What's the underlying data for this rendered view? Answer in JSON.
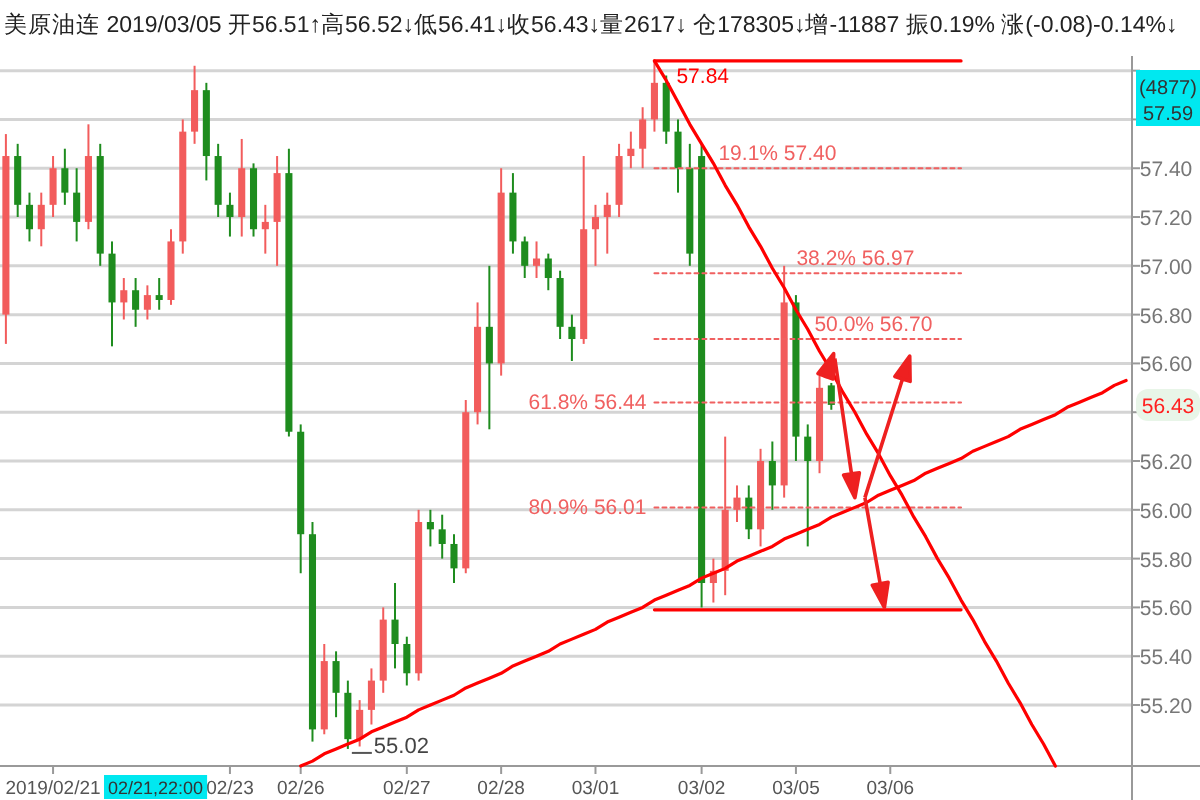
{
  "chart_data": {
    "type": "candlestick",
    "title": "美原油连 2019/03/05 开56.51↑高56.52↓低56.41↓收56.43↓量2617↓ 仓178305↓增-11887 振0.19% 涨(-0.08)-0.14%↓",
    "categories": [
      null,
      null,
      null,
      null,
      "2019/02/21",
      null,
      null,
      null,
      null,
      null,
      null,
      null,
      null,
      null,
      null,
      null,
      null,
      null,
      null,
      "02/23",
      null,
      null,
      null,
      null,
      null,
      "02/26",
      null,
      null,
      null,
      null,
      null,
      null,
      null,
      null,
      "02/27",
      null,
      null,
      null,
      null,
      null,
      null,
      null,
      "02/28",
      null,
      null,
      null,
      null,
      null,
      null,
      null,
      "03/01",
      null,
      null,
      null,
      null,
      null,
      null,
      null,
      null,
      "03/02",
      null,
      null,
      null,
      null,
      null,
      null,
      null,
      "03/05",
      null,
      null,
      null,
      null,
      null,
      null,
      null,
      "03/06",
      null,
      null,
      null,
      null,
      null,
      null,
      null,
      null,
      null,
      null,
      null,
      null,
      null,
      null,
      null,
      null,
      null,
      null,
      null,
      null
    ],
    "ohlc": [
      [
        56.8,
        57.54,
        56.68,
        57.45
      ],
      [
        57.45,
        57.5,
        57.2,
        57.25
      ],
      [
        57.25,
        57.3,
        57.1,
        57.15
      ],
      [
        57.15,
        57.3,
        57.08,
        57.25
      ],
      [
        57.25,
        57.45,
        57.2,
        57.4
      ],
      [
        57.4,
        57.48,
        57.25,
        57.3
      ],
      [
        57.3,
        57.4,
        57.1,
        57.18
      ],
      [
        57.18,
        57.58,
        57.15,
        57.45
      ],
      [
        57.45,
        57.5,
        57.0,
        57.05
      ],
      [
        57.05,
        57.1,
        56.67,
        56.85
      ],
      [
        56.85,
        56.95,
        56.78,
        56.9
      ],
      [
        56.9,
        56.95,
        56.75,
        56.82
      ],
      [
        56.82,
        56.92,
        56.78,
        56.88
      ],
      [
        56.88,
        56.95,
        56.82,
        56.86
      ],
      [
        56.86,
        57.15,
        56.84,
        57.1
      ],
      [
        57.1,
        57.6,
        57.05,
        57.55
      ],
      [
        57.55,
        57.82,
        57.5,
        57.72
      ],
      [
        57.72,
        57.75,
        57.35,
        57.45
      ],
      [
        57.45,
        57.5,
        57.2,
        57.25
      ],
      [
        57.25,
        57.3,
        57.12,
        57.2
      ],
      [
        57.2,
        57.52,
        57.12,
        57.4
      ],
      [
        57.4,
        57.42,
        57.12,
        57.15
      ],
      [
        57.15,
        57.25,
        57.05,
        57.18
      ],
      [
        57.18,
        57.45,
        57.0,
        57.38
      ],
      [
        57.38,
        57.48,
        56.3,
        56.32
      ],
      [
        56.32,
        56.35,
        55.74,
        55.9
      ],
      [
        55.9,
        55.95,
        55.05,
        55.1
      ],
      [
        55.1,
        55.45,
        55.08,
        55.38
      ],
      [
        55.38,
        55.42,
        55.15,
        55.25
      ],
      [
        55.25,
        55.3,
        55.02,
        55.06
      ],
      [
        55.06,
        55.22,
        55.03,
        55.18
      ],
      [
        55.18,
        55.35,
        55.12,
        55.3
      ],
      [
        55.3,
        55.6,
        55.25,
        55.55
      ],
      [
        55.55,
        55.7,
        55.35,
        55.45
      ],
      [
        55.45,
        55.48,
        55.28,
        55.33
      ],
      [
        55.33,
        56.0,
        55.3,
        55.95
      ],
      [
        55.95,
        56.0,
        55.85,
        55.92
      ],
      [
        55.92,
        55.98,
        55.8,
        55.86
      ],
      [
        55.86,
        55.9,
        55.7,
        55.76
      ],
      [
        55.76,
        56.45,
        55.74,
        56.4
      ],
      [
        56.4,
        56.85,
        56.35,
        56.75
      ],
      [
        56.75,
        57.0,
        56.33,
        56.6
      ],
      [
        56.6,
        57.4,
        56.55,
        57.3
      ],
      [
        57.3,
        57.38,
        57.05,
        57.1
      ],
      [
        57.1,
        57.12,
        56.95,
        57.0
      ],
      [
        57.0,
        57.1,
        56.95,
        57.03
      ],
      [
        57.03,
        57.05,
        56.9,
        56.95
      ],
      [
        56.95,
        56.98,
        56.7,
        56.75
      ],
      [
        56.75,
        56.8,
        56.61,
        56.7
      ],
      [
        56.7,
        57.45,
        56.68,
        57.15
      ],
      [
        57.15,
        57.25,
        57.0,
        57.2
      ],
      [
        57.2,
        57.3,
        57.05,
        57.25
      ],
      [
        57.25,
        57.5,
        57.2,
        57.45
      ],
      [
        57.45,
        57.55,
        57.4,
        57.48
      ],
      [
        57.48,
        57.65,
        57.4,
        57.6
      ],
      [
        57.6,
        57.84,
        57.55,
        57.75
      ],
      [
        57.75,
        57.78,
        57.5,
        57.55
      ],
      [
        57.55,
        57.6,
        57.3,
        57.4
      ],
      [
        57.4,
        57.5,
        57.0,
        57.05
      ],
      [
        57.45,
        57.5,
        55.6,
        55.7
      ],
      [
        55.7,
        55.8,
        55.62,
        55.75
      ],
      [
        55.75,
        56.3,
        55.65,
        56.0
      ],
      [
        56.0,
        56.1,
        55.95,
        56.05
      ],
      [
        56.05,
        56.1,
        55.88,
        55.92
      ],
      [
        55.92,
        56.25,
        55.85,
        56.2
      ],
      [
        56.2,
        56.28,
        56.0,
        56.1
      ],
      [
        56.1,
        57.0,
        56.05,
        56.85
      ],
      [
        56.85,
        56.88,
        56.2,
        56.3
      ],
      [
        56.3,
        56.35,
        55.85,
        56.2
      ],
      [
        56.2,
        56.55,
        56.15,
        56.5
      ],
      [
        56.51,
        56.52,
        56.41,
        56.43
      ],
      null,
      null,
      null,
      null,
      null,
      null,
      null,
      null,
      null,
      null,
      null,
      null,
      null,
      null,
      null,
      null,
      null,
      null,
      null,
      null,
      null,
      null,
      null,
      null,
      null
    ],
    "ylim": [
      54.95,
      57.86
    ],
    "yticks": [
      {
        "value": 55.2,
        "label": "55.20"
      },
      {
        "value": 55.4,
        "label": "55.40"
      },
      {
        "value": 55.6,
        "label": "55.60"
      },
      {
        "value": 55.8,
        "label": "55.80"
      },
      {
        "value": 56.0,
        "label": "56.00"
      },
      {
        "value": 56.2,
        "label": "56.20"
      },
      {
        "value": 56.4,
        "label": null
      },
      {
        "value": 56.6,
        "label": "56.60"
      },
      {
        "value": 56.8,
        "label": "56.80"
      },
      {
        "value": 57.0,
        "label": "57.00"
      },
      {
        "value": 57.2,
        "label": "57.20"
      },
      {
        "value": 57.4,
        "label": "57.40"
      },
      {
        "value": 57.6,
        "label": null
      },
      {
        "value": 57.8,
        "label": null
      }
    ],
    "grid": "y",
    "series": [
      {
        "type": "line",
        "name": "57.84",
        "color": "#ff0000",
        "line_style": "solid",
        "values": [
          null,
          null,
          null,
          null,
          null,
          null,
          null,
          null,
          null,
          null,
          null,
          null,
          null,
          null,
          null,
          null,
          null,
          null,
          null,
          null,
          null,
          null,
          null,
          null,
          null,
          null,
          null,
          null,
          null,
          null,
          null,
          null,
          null,
          null,
          null,
          null,
          null,
          null,
          null,
          null,
          null,
          null,
          null,
          null,
          null,
          null,
          null,
          null,
          null,
          null,
          null,
          null,
          null,
          null,
          null,
          57.84,
          57.84,
          57.84,
          57.84,
          57.84,
          57.84,
          57.84,
          57.84,
          57.84,
          57.84,
          57.84,
          57.84,
          57.84,
          57.84,
          57.84,
          57.84,
          57.84,
          57.84,
          57.84,
          57.84,
          57.84,
          57.84,
          57.84,
          57.84,
          57.84,
          57.84,
          57.84,
          null,
          null,
          null,
          null,
          null,
          null,
          null,
          null,
          null,
          null,
          null,
          null,
          null,
          null
        ]
      },
      {
        "type": "line",
        "name": "19.1% 57.40",
        "color": "#f06060",
        "line_style": "dotted",
        "values": [
          null,
          null,
          null,
          null,
          null,
          null,
          null,
          null,
          null,
          null,
          null,
          null,
          null,
          null,
          null,
          null,
          null,
          null,
          null,
          null,
          null,
          null,
          null,
          null,
          null,
          null,
          null,
          null,
          null,
          null,
          null,
          null,
          null,
          null,
          null,
          null,
          null,
          null,
          null,
          null,
          null,
          null,
          null,
          null,
          null,
          null,
          null,
          null,
          null,
          null,
          null,
          null,
          null,
          null,
          null,
          57.4,
          57.4,
          57.4,
          57.4,
          57.4,
          57.4,
          57.4,
          57.4,
          57.4,
          57.4,
          57.4,
          57.4,
          57.4,
          57.4,
          57.4,
          57.4,
          57.4,
          57.4,
          57.4,
          57.4,
          57.4,
          57.4,
          57.4,
          57.4,
          57.4,
          57.4,
          57.4,
          null,
          null,
          null,
          null,
          null,
          null,
          null,
          null,
          null,
          null,
          null,
          null,
          null,
          null
        ]
      },
      {
        "type": "line",
        "name": "38.2% 56.97",
        "color": "#f06060",
        "line_style": "dotted",
        "values": [
          null,
          null,
          null,
          null,
          null,
          null,
          null,
          null,
          null,
          null,
          null,
          null,
          null,
          null,
          null,
          null,
          null,
          null,
          null,
          null,
          null,
          null,
          null,
          null,
          null,
          null,
          null,
          null,
          null,
          null,
          null,
          null,
          null,
          null,
          null,
          null,
          null,
          null,
          null,
          null,
          null,
          null,
          null,
          null,
          null,
          null,
          null,
          null,
          null,
          null,
          null,
          null,
          null,
          null,
          null,
          56.97,
          56.97,
          56.97,
          56.97,
          56.97,
          56.97,
          56.97,
          56.97,
          56.97,
          56.97,
          56.97,
          56.97,
          56.97,
          56.97,
          56.97,
          56.97,
          56.97,
          56.97,
          56.97,
          56.97,
          56.97,
          56.97,
          56.97,
          56.97,
          56.97,
          56.97,
          56.97,
          null,
          null,
          null,
          null,
          null,
          null,
          null,
          null,
          null,
          null,
          null,
          null,
          null,
          null
        ]
      },
      {
        "type": "line",
        "name": "50.0% 56.70",
        "color": "#f06060",
        "line_style": "dotted",
        "values": [
          null,
          null,
          null,
          null,
          null,
          null,
          null,
          null,
          null,
          null,
          null,
          null,
          null,
          null,
          null,
          null,
          null,
          null,
          null,
          null,
          null,
          null,
          null,
          null,
          null,
          null,
          null,
          null,
          null,
          null,
          null,
          null,
          null,
          null,
          null,
          null,
          null,
          null,
          null,
          null,
          null,
          null,
          null,
          null,
          null,
          null,
          null,
          null,
          null,
          null,
          null,
          null,
          null,
          null,
          null,
          56.7,
          56.7,
          56.7,
          56.7,
          56.7,
          56.7,
          56.7,
          56.7,
          56.7,
          56.7,
          56.7,
          56.7,
          56.7,
          56.7,
          56.7,
          56.7,
          56.7,
          56.7,
          56.7,
          56.7,
          56.7,
          56.7,
          56.7,
          56.7,
          56.7,
          56.7,
          56.7,
          null,
          null,
          null,
          null,
          null,
          null,
          null,
          null,
          null,
          null,
          null,
          null,
          null,
          null
        ]
      },
      {
        "type": "line",
        "name": "61.8% 56.44",
        "color": "#f06060",
        "line_style": "dotted",
        "values": [
          null,
          null,
          null,
          null,
          null,
          null,
          null,
          null,
          null,
          null,
          null,
          null,
          null,
          null,
          null,
          null,
          null,
          null,
          null,
          null,
          null,
          null,
          null,
          null,
          null,
          null,
          null,
          null,
          null,
          null,
          null,
          null,
          null,
          null,
          null,
          null,
          null,
          null,
          null,
          null,
          null,
          null,
          null,
          null,
          null,
          null,
          null,
          null,
          null,
          null,
          null,
          null,
          null,
          null,
          null,
          56.44,
          56.44,
          56.44,
          56.44,
          56.44,
          56.44,
          56.44,
          56.44,
          56.44,
          56.44,
          56.44,
          56.44,
          56.44,
          56.44,
          56.44,
          56.44,
          56.44,
          56.44,
          56.44,
          56.44,
          56.44,
          56.44,
          56.44,
          56.44,
          56.44,
          56.44,
          56.44,
          null,
          null,
          null,
          null,
          null,
          null,
          null,
          null,
          null,
          null,
          null,
          null,
          null,
          null
        ]
      },
      {
        "type": "line",
        "name": "80.9% 56.01",
        "color": "#f06060",
        "line_style": "dotted",
        "values": [
          null,
          null,
          null,
          null,
          null,
          null,
          null,
          null,
          null,
          null,
          null,
          null,
          null,
          null,
          null,
          null,
          null,
          null,
          null,
          null,
          null,
          null,
          null,
          null,
          null,
          null,
          null,
          null,
          null,
          null,
          null,
          null,
          null,
          null,
          null,
          null,
          null,
          null,
          null,
          null,
          null,
          null,
          null,
          null,
          null,
          null,
          null,
          null,
          null,
          null,
          null,
          null,
          null,
          null,
          null,
          56.01,
          56.01,
          56.01,
          56.01,
          56.01,
          56.01,
          56.01,
          56.01,
          56.01,
          56.01,
          56.01,
          56.01,
          56.01,
          56.01,
          56.01,
          56.01,
          56.01,
          56.01,
          56.01,
          56.01,
          56.01,
          56.01,
          56.01,
          56.01,
          56.01,
          56.01,
          56.01,
          null,
          null,
          null,
          null,
          null,
          null,
          null,
          null,
          null,
          null,
          null,
          null,
          null,
          null
        ]
      },
      {
        "type": "line",
        "color": "#ff0000",
        "line_style": "solid",
        "values": [
          null,
          null,
          null,
          null,
          null,
          null,
          null,
          null,
          null,
          null,
          null,
          null,
          null,
          null,
          null,
          null,
          null,
          null,
          null,
          null,
          null,
          null,
          null,
          null,
          null,
          null,
          null,
          null,
          null,
          null,
          null,
          null,
          null,
          null,
          null,
          null,
          null,
          null,
          null,
          null,
          null,
          null,
          null,
          null,
          null,
          null,
          null,
          null,
          null,
          null,
          null,
          null,
          null,
          null,
          null,
          55.59,
          55.59,
          55.59,
          55.59,
          55.59,
          55.59,
          55.59,
          55.59,
          55.59,
          55.59,
          55.59,
          55.59,
          55.59,
          55.59,
          55.59,
          55.59,
          55.59,
          55.59,
          55.59,
          55.59,
          55.59,
          55.59,
          55.59,
          55.59,
          55.59,
          55.59,
          55.59,
          null,
          null,
          null,
          null,
          null,
          null,
          null,
          null,
          null,
          null,
          null,
          null,
          null,
          null
        ]
      },
      {
        "type": "line",
        "color": "#ff0000",
        "line_style": "solid",
        "values": [
          null,
          null,
          null,
          null,
          null,
          null,
          null,
          null,
          null,
          null,
          null,
          null,
          null,
          null,
          null,
          null,
          null,
          null,
          null,
          null,
          null,
          null,
          null,
          null,
          null,
          null,
          null,
          null,
          null,
          null,
          null,
          null,
          null,
          null,
          null,
          null,
          null,
          null,
          null,
          null,
          null,
          null,
          null,
          null,
          null,
          null,
          null,
          null,
          null,
          null,
          null,
          null,
          null,
          null,
          null,
          57.84,
          57.76,
          57.67,
          57.58,
          57.5,
          57.42,
          57.33,
          57.25,
          57.16,
          57.08,
          56.99,
          56.91,
          56.82,
          56.74,
          56.65,
          56.57,
          56.48,
          56.4,
          56.31,
          56.23,
          56.14,
          56.06,
          55.97,
          55.89,
          55.8,
          55.72,
          55.63,
          55.55,
          55.46,
          55.38,
          55.29,
          55.21,
          55.12,
          55.04,
          54.95,
          null,
          null,
          null,
          null,
          null,
          null
        ]
      },
      {
        "type": "line",
        "color": "#ff0000",
        "line_style": "solid",
        "values": [
          null,
          null,
          null,
          null,
          null,
          null,
          null,
          null,
          null,
          null,
          null,
          null,
          null,
          null,
          null,
          null,
          null,
          null,
          null,
          null,
          null,
          null,
          null,
          null,
          null,
          54.95,
          54.97,
          55.0,
          55.02,
          55.04,
          55.06,
          55.09,
          55.11,
          55.13,
          55.15,
          55.18,
          55.2,
          55.22,
          55.24,
          55.27,
          55.29,
          55.31,
          55.33,
          55.36,
          55.38,
          55.4,
          55.42,
          55.45,
          55.47,
          55.49,
          55.51,
          55.54,
          55.56,
          55.58,
          55.6,
          55.63,
          55.65,
          55.67,
          55.69,
          55.72,
          55.74,
          55.76,
          55.79,
          55.81,
          55.83,
          55.85,
          55.88,
          55.9,
          55.92,
          55.94,
          55.97,
          55.99,
          56.01,
          56.03,
          56.06,
          56.08,
          56.1,
          56.12,
          56.15,
          56.17,
          56.19,
          56.21,
          56.24,
          56.26,
          56.28,
          56.3,
          56.33,
          56.35,
          56.37,
          56.39,
          56.42,
          56.44,
          56.46,
          56.48,
          56.51,
          56.53
        ]
      }
    ],
    "annotations": [
      "55.02",
      "(4877)",
      "57.59",
      "02/21,22:00",
      "56.43"
    ]
  }
}
